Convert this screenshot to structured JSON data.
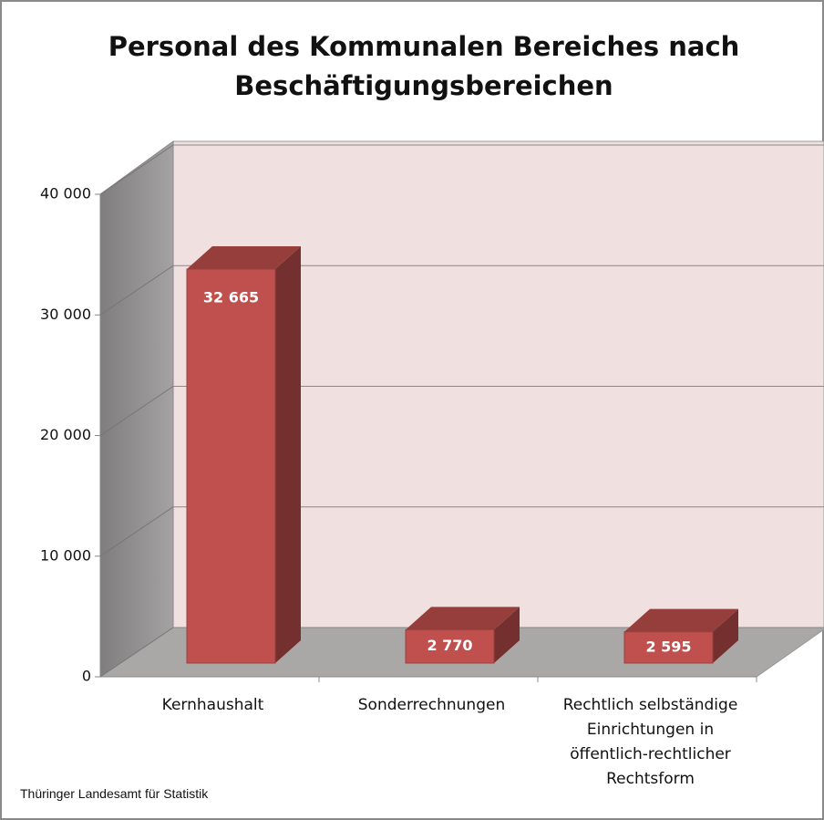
{
  "chart_data": {
    "type": "bar3d",
    "title": "Personal des Kommunalen Bereiches nach Beschäftigungsbereichen",
    "categories": [
      "Kernhaushalt",
      "Sonderrechnungen",
      "Rechtlich selbständige Einrichtungen in öffentlich-rechtlicher Rechtsform"
    ],
    "values": [
      32665,
      2770,
      2595
    ],
    "value_labels": [
      "32 665",
      "2 770",
      "2 595"
    ],
    "color": "#c0504d",
    "ylim": [
      0,
      40000
    ],
    "yticks": [
      0,
      {
        "value": 10000,
        "label": "10 000"
      },
      {
        "value": 20000,
        "label": "20 000"
      },
      {
        "value": 30000,
        "label": "30 000"
      },
      {
        "value": 40000,
        "label": "40 000"
      }
    ],
    "grid": true,
    "source": "Thüringer Landesamt für Statistik"
  }
}
